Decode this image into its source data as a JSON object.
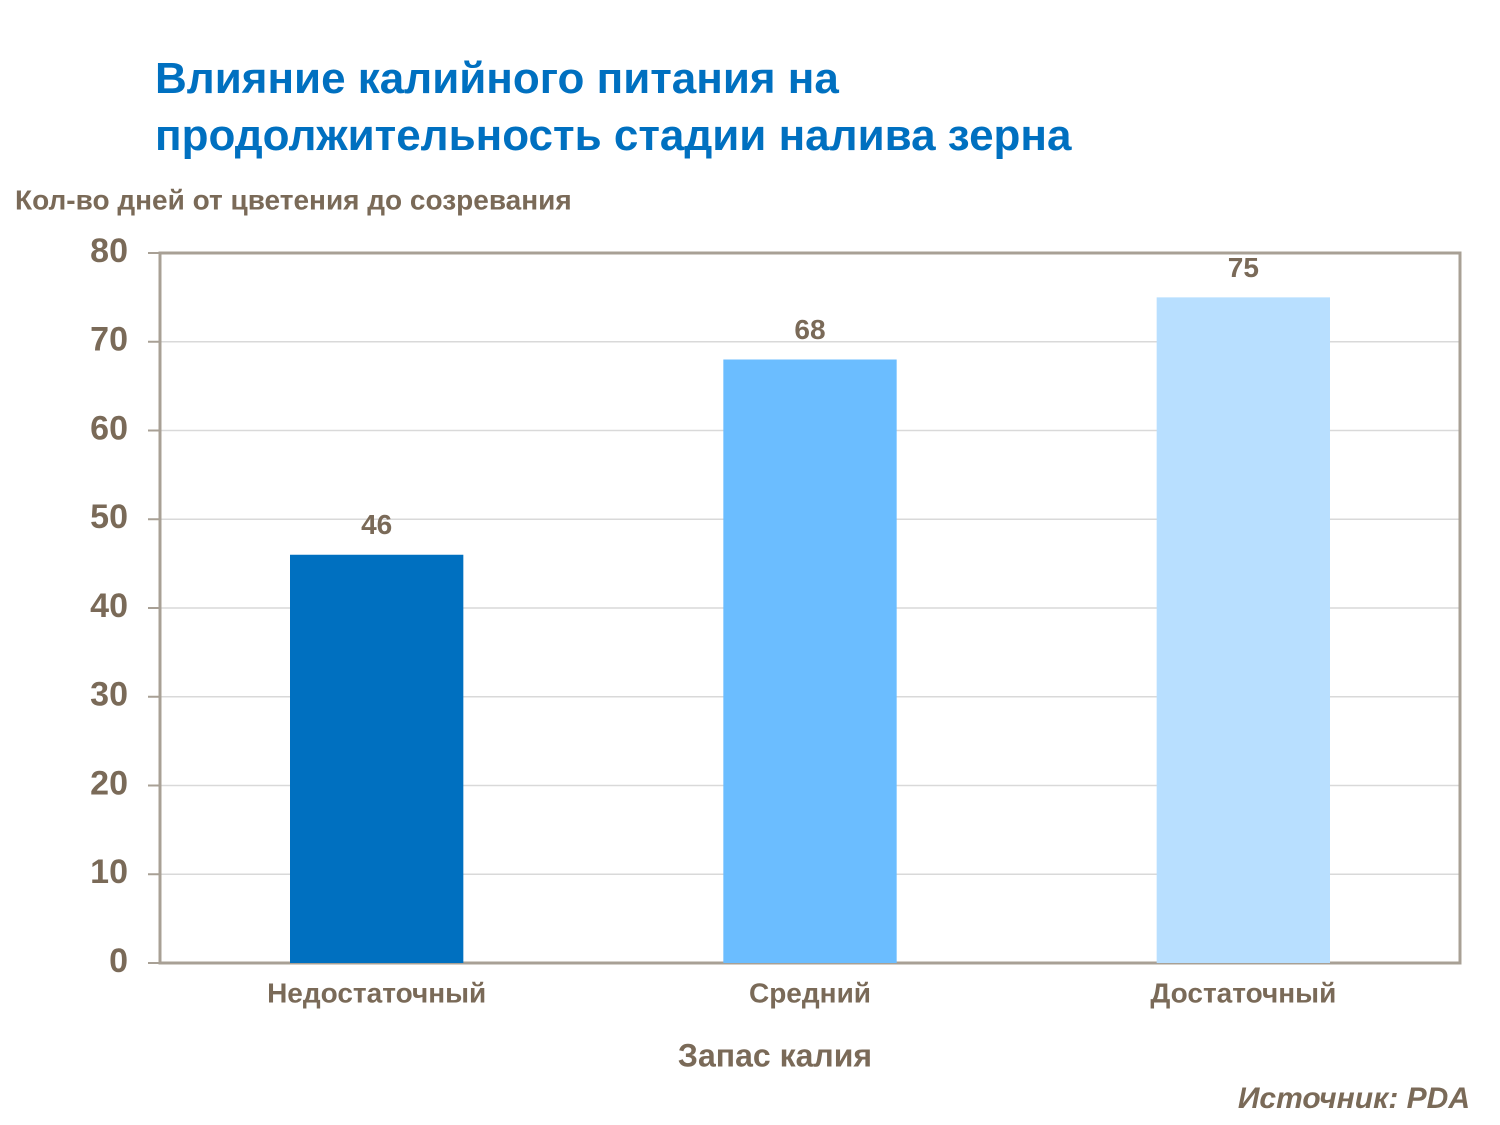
{
  "chart_data": {
    "type": "bar",
    "title": [
      "Влияние калийного питания на",
      "продолжительность стадии налива зерна"
    ],
    "y_label": "Кол-во дней от цветения до созревания",
    "x_label": "Запас калия",
    "source": "Источник: PDA",
    "categories": [
      "Недостаточный",
      "Средний",
      "Достаточный"
    ],
    "values": [
      46,
      68,
      75
    ],
    "colors": [
      "#0070c0",
      "#6bbdff",
      "#b8dfff"
    ],
    "ylim": [
      0,
      80
    ],
    "yticks": [
      0,
      10,
      20,
      30,
      40,
      50,
      60,
      70,
      80
    ],
    "grid": true
  }
}
